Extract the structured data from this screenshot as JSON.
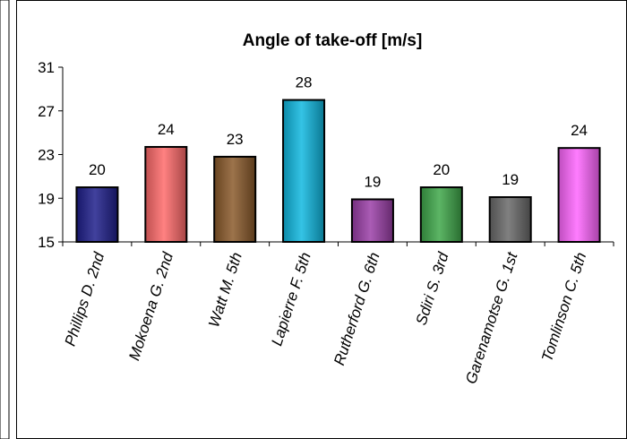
{
  "chart_data": {
    "type": "bar",
    "title": "Angle of take-off  [m/s]",
    "xlabel": "",
    "ylabel": "",
    "ylim": [
      15,
      31
    ],
    "yticks": [
      15,
      19,
      23,
      27,
      31
    ],
    "grid": false,
    "legend": "none",
    "categories": [
      "Phillips D. 2nd",
      "Mokoena G. 2nd",
      "Watt M. 5th",
      "Lapierre F. 5th",
      "Rutherford G. 6th",
      "Sdiri S. 3rd",
      "Garenamotse G. 1st",
      "Tomlinson C. 5th"
    ],
    "values": [
      20,
      23.7,
      22.8,
      28,
      18.9,
      20,
      19.1,
      23.6
    ],
    "data_labels": [
      "20",
      "24",
      "23",
      "28",
      "19",
      "20",
      "19",
      "24"
    ],
    "colors": [
      "#1f1f8c",
      "#ff6b6b",
      "#8b5a2b",
      "#10b8e0",
      "#9b3fa8",
      "#3fa84a",
      "#6a6a6a",
      "#ff66ff"
    ]
  }
}
